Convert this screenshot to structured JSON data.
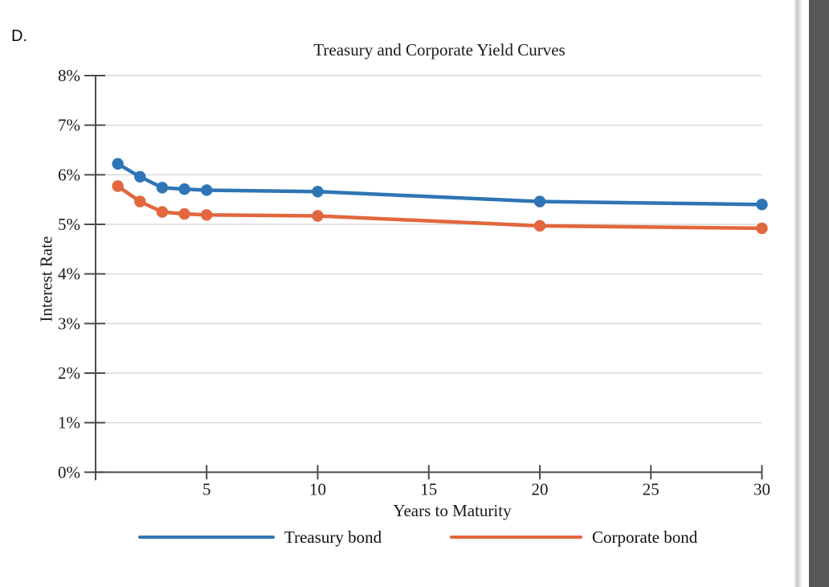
{
  "page": {
    "answer_label": "D."
  },
  "chart_data": {
    "type": "line",
    "title": "Treasury and Corporate Yield Curves",
    "xlabel": "Years to Maturity",
    "ylabel": "Interest Rate",
    "x": [
      1,
      2,
      3,
      4,
      5,
      10,
      20,
      30
    ],
    "series": [
      {
        "name": "Treasury bond",
        "color": "#2F75B5",
        "values": [
          6.22,
          5.96,
          5.74,
          5.71,
          5.69,
          5.66,
          5.46,
          5.4
        ]
      },
      {
        "name": "Corporate bond",
        "color": "#E2673D",
        "values": [
          5.77,
          5.46,
          5.25,
          5.21,
          5.19,
          5.17,
          4.97,
          4.92
        ]
      }
    ],
    "xlim": [
      0,
      30
    ],
    "ylim": [
      0,
      8
    ],
    "x_ticks": [
      5,
      10,
      15,
      20,
      25,
      30
    ],
    "y_ticks": [
      0,
      1,
      2,
      3,
      4,
      5,
      6,
      7,
      8
    ],
    "y_tick_suffix": "%",
    "grid": true,
    "legend_position": "bottom"
  },
  "colors": {
    "axis": "#4D4D4D",
    "gridline": "#D9D9D9",
    "tick_text": "#1A1A1A",
    "scrollbar": "#585858"
  }
}
